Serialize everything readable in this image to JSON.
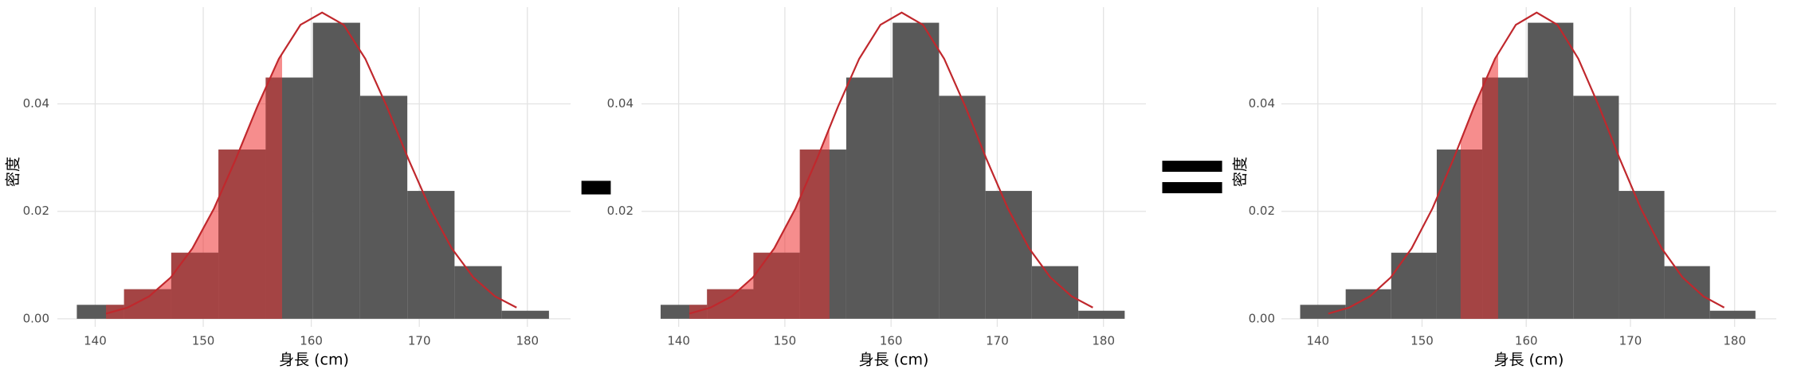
{
  "operators": [
    "-",
    "="
  ],
  "chart_data": [
    {
      "type": "histogram",
      "xlabel": "身長 (cm)",
      "ylabel": "密度",
      "bins": [
        138.3,
        142.67,
        147.04,
        151.41,
        155.78,
        160.15,
        164.52,
        168.89,
        173.26,
        177.63,
        182.0
      ],
      "values": [
        0.0026,
        0.0055,
        0.0123,
        0.0315,
        0.0449,
        0.0551,
        0.0415,
        0.0238,
        0.0098,
        0.0015
      ],
      "color": "#595959",
      "curve": {
        "x": [
          141,
          143,
          145,
          147,
          149,
          151,
          153,
          155,
          157,
          159,
          161,
          163,
          165,
          167,
          169,
          171,
          173,
          175,
          177,
          179
        ],
        "y": [
          0.00096,
          0.00209,
          0.00418,
          0.00771,
          0.01311,
          0.02054,
          0.02966,
          0.03947,
          0.0484,
          0.05471,
          0.05699,
          0.05471,
          0.0484,
          0.03947,
          0.02966,
          0.02054,
          0.01311,
          0.00771,
          0.00418,
          0.00209
        ],
        "color": "#c0282d"
      },
      "shade": {
        "from": 141,
        "to": 157.3,
        "color": "#ef2f2f"
      },
      "xlim": [
        136.5,
        184
      ],
      "ylim": [
        -0.0015,
        0.058
      ],
      "xticks": [
        140,
        150,
        160,
        170,
        180
      ],
      "yticks": [
        {
          "value": 0,
          "label": "0.00"
        },
        {
          "value": 0.02,
          "label": "0.02"
        },
        {
          "value": 0.04,
          "label": "0.04"
        }
      ],
      "grid": true
    },
    {
      "type": "histogram",
      "xlabel": "身長 (cm)",
      "bins": [
        138.3,
        142.67,
        147.04,
        151.41,
        155.78,
        160.15,
        164.52,
        168.89,
        173.26,
        177.63,
        182.0
      ],
      "values": [
        0.0026,
        0.0055,
        0.0123,
        0.0315,
        0.0449,
        0.0551,
        0.0415,
        0.0238,
        0.0098,
        0.0015
      ],
      "color": "#595959",
      "curve": {
        "x": [
          141,
          143,
          145,
          147,
          149,
          151,
          153,
          155,
          157,
          159,
          161,
          163,
          165,
          167,
          169,
          171,
          173,
          175,
          177,
          179
        ],
        "y": [
          0.00096,
          0.00209,
          0.00418,
          0.00771,
          0.01311,
          0.02054,
          0.02966,
          0.03947,
          0.0484,
          0.05471,
          0.05699,
          0.05471,
          0.0484,
          0.03947,
          0.02966,
          0.02054,
          0.01311,
          0.00771,
          0.00418,
          0.00209
        ],
        "color": "#c0282d"
      },
      "shade": {
        "from": 141,
        "to": 154.2,
        "color": "#ef2f2f"
      },
      "xlim": [
        136.5,
        184
      ],
      "ylim": [
        -0.0015,
        0.058
      ],
      "xticks": [
        140,
        150,
        160,
        170,
        180
      ],
      "yticks": [
        {
          "value": 0.02,
          "label": "0.02"
        },
        {
          "value": 0.04,
          "label": "0.04"
        }
      ],
      "grid": true
    },
    {
      "type": "histogram",
      "xlabel": "身長 (cm)",
      "ylabel": "密度",
      "bins": [
        138.3,
        142.67,
        147.04,
        151.41,
        155.78,
        160.15,
        164.52,
        168.89,
        173.26,
        177.63,
        182.0
      ],
      "values": [
        0.0026,
        0.0055,
        0.0123,
        0.0315,
        0.0449,
        0.0551,
        0.0415,
        0.0238,
        0.0098,
        0.0015
      ],
      "color": "#595959",
      "curve": {
        "x": [
          141,
          143,
          145,
          147,
          149,
          151,
          153,
          155,
          157,
          159,
          161,
          163,
          165,
          167,
          169,
          171,
          173,
          175,
          177,
          179
        ],
        "y": [
          0.00096,
          0.00209,
          0.00418,
          0.00771,
          0.01311,
          0.02054,
          0.02966,
          0.03947,
          0.0484,
          0.05471,
          0.05699,
          0.05471,
          0.0484,
          0.03947,
          0.02966,
          0.02054,
          0.01311,
          0.00771,
          0.00418,
          0.00209
        ],
        "color": "#c0282d"
      },
      "shade": {
        "from": 153.7,
        "to": 157.3,
        "color": "#ef2f2f"
      },
      "xlim": [
        136.5,
        184
      ],
      "ylim": [
        -0.0015,
        0.058
      ],
      "xticks": [
        140,
        150,
        160,
        170,
        180
      ],
      "yticks": [
        {
          "value": 0,
          "label": "0.00"
        },
        {
          "value": 0.02,
          "label": "0.02"
        },
        {
          "value": 0.04,
          "label": "0.04"
        }
      ],
      "grid": true
    }
  ]
}
